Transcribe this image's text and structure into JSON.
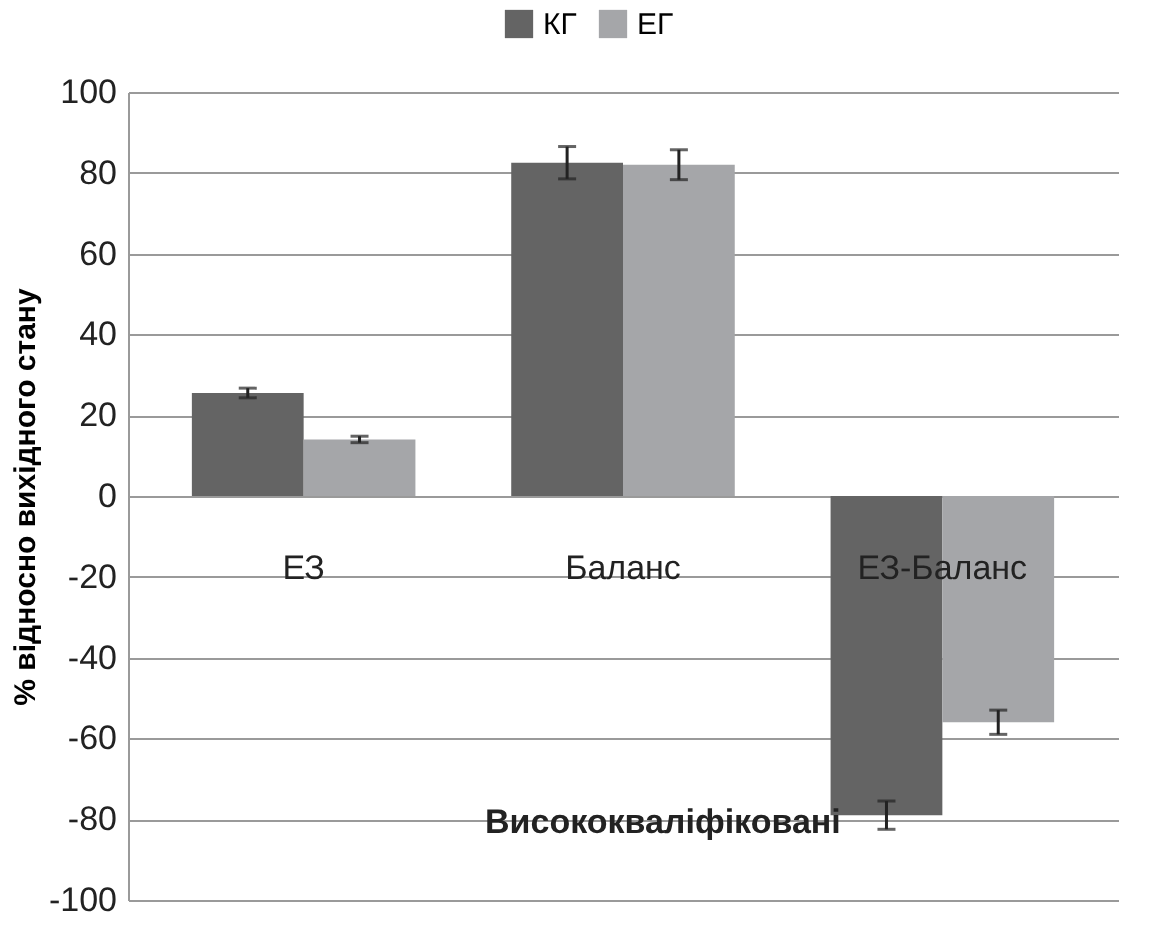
{
  "chart_data": {
    "type": "bar",
    "ylabel": "% відносно вихідного стану",
    "categories": [
      "ЕЗ",
      "Баланс",
      "ЕЗ-Баланс"
    ],
    "series": [
      {
        "name": "КГ",
        "color": "#646464",
        "values": [
          25.5,
          82.5,
          -79
        ],
        "errors": [
          1.2,
          4,
          3.5
        ]
      },
      {
        "name": "ЕГ",
        "color": "#a5a6a9",
        "values": [
          14,
          82,
          -56
        ],
        "errors": [
          0.8,
          3.7,
          3
        ]
      }
    ],
    "ylim": [
      -100,
      100
    ],
    "yticks": [
      -100,
      -80,
      -60,
      -40,
      -20,
      0,
      20,
      40,
      60,
      80,
      100
    ],
    "grid": "y",
    "legend": "top",
    "annotations": [
      "Висококваліфіковані"
    ]
  }
}
